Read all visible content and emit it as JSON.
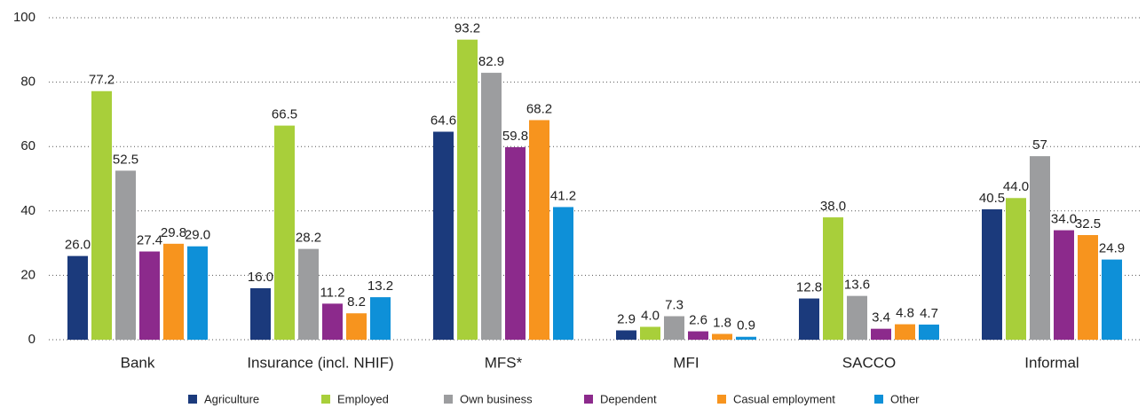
{
  "chart_data": {
    "type": "bar",
    "categories": [
      "Bank",
      "Insurance (incl. NHIF)",
      "MFS*",
      "MFI",
      "SACCO",
      "Informal"
    ],
    "series": [
      {
        "name": "Agriculture",
        "color": "#1b3a7c",
        "values": [
          26.0,
          16.0,
          64.6,
          2.9,
          12.8,
          40.5
        ],
        "value_labels": [
          "26.0",
          "16.0",
          "64.6",
          "2.9",
          "12.8",
          "40.5"
        ]
      },
      {
        "name": "Employed",
        "color": "#a8cf3a",
        "values": [
          77.2,
          66.5,
          93.2,
          4.0,
          38.0,
          44.0
        ],
        "value_labels": [
          "77.2",
          "66.5",
          "93.2",
          "4.0",
          "38.0",
          "44.0"
        ]
      },
      {
        "name": "Own business",
        "color": "#9c9d9f",
        "values": [
          52.5,
          28.2,
          82.9,
          7.3,
          13.6,
          57
        ],
        "value_labels": [
          "52.5",
          "28.2",
          "82.9",
          "7.3",
          "13.6",
          "57"
        ]
      },
      {
        "name": "Dependent",
        "color": "#8c2a8c",
        "values": [
          27.4,
          11.2,
          59.8,
          2.6,
          3.4,
          34.0
        ],
        "value_labels": [
          "27.4",
          "11.2",
          "59.8",
          "2.6",
          "3.4",
          "34.0"
        ]
      },
      {
        "name": "Casual employment",
        "color": "#f7941e",
        "values": [
          29.8,
          8.2,
          68.2,
          1.8,
          4.8,
          32.5
        ],
        "value_labels": [
          "29.8",
          "8.2",
          "68.2",
          "1.8",
          "4.8",
          "32.5"
        ]
      },
      {
        "name": "Other",
        "color": "#0e90d8",
        "values": [
          29.0,
          13.2,
          41.2,
          0.9,
          4.7,
          24.9
        ],
        "value_labels": [
          "29.0",
          "13.2",
          "41.2",
          "0.9",
          "4.7",
          "24.9"
        ]
      }
    ],
    "ylim": [
      0,
      100
    ],
    "yticks": [
      0,
      20,
      40,
      60,
      80,
      100
    ],
    "grid": true,
    "legend": "bottom"
  }
}
